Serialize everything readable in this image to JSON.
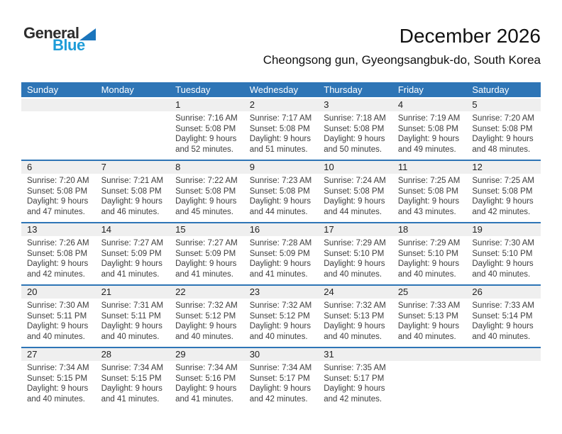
{
  "logo": {
    "line1": "General",
    "line2": "Blue"
  },
  "header": {
    "title": "December 2026",
    "subtitle": "Cheongsong gun, Gyeongsangbuk-do, South Korea"
  },
  "weekday_headers": [
    "Sunday",
    "Monday",
    "Tuesday",
    "Wednesday",
    "Thursday",
    "Friday",
    "Saturday"
  ],
  "cell_labels": {
    "sunrise": "Sunrise:",
    "sunset": "Sunset:",
    "daylight": "Daylight:"
  },
  "colors": {
    "header_bar_blue": "#2e75b6",
    "row_divider_blue": "#2e75b6",
    "day_stripe_gray": "#efefef",
    "logo_triangle_blue": "#1b75bc",
    "logo_blue_text": "#1e9cd8",
    "title_text": "#111111",
    "detail_text": "#3d3d3d"
  },
  "weeks": [
    [
      null,
      null,
      {
        "day": "1",
        "sunrise": "7:16 AM",
        "sunset": "5:08 PM",
        "daylight": "9 hours and 52 minutes."
      },
      {
        "day": "2",
        "sunrise": "7:17 AM",
        "sunset": "5:08 PM",
        "daylight": "9 hours and 51 minutes."
      },
      {
        "day": "3",
        "sunrise": "7:18 AM",
        "sunset": "5:08 PM",
        "daylight": "9 hours and 50 minutes."
      },
      {
        "day": "4",
        "sunrise": "7:19 AM",
        "sunset": "5:08 PM",
        "daylight": "9 hours and 49 minutes."
      },
      {
        "day": "5",
        "sunrise": "7:20 AM",
        "sunset": "5:08 PM",
        "daylight": "9 hours and 48 minutes."
      }
    ],
    [
      {
        "day": "6",
        "sunrise": "7:20 AM",
        "sunset": "5:08 PM",
        "daylight": "9 hours and 47 minutes."
      },
      {
        "day": "7",
        "sunrise": "7:21 AM",
        "sunset": "5:08 PM",
        "daylight": "9 hours and 46 minutes."
      },
      {
        "day": "8",
        "sunrise": "7:22 AM",
        "sunset": "5:08 PM",
        "daylight": "9 hours and 45 minutes."
      },
      {
        "day": "9",
        "sunrise": "7:23 AM",
        "sunset": "5:08 PM",
        "daylight": "9 hours and 44 minutes."
      },
      {
        "day": "10",
        "sunrise": "7:24 AM",
        "sunset": "5:08 PM",
        "daylight": "9 hours and 44 minutes."
      },
      {
        "day": "11",
        "sunrise": "7:25 AM",
        "sunset": "5:08 PM",
        "daylight": "9 hours and 43 minutes."
      },
      {
        "day": "12",
        "sunrise": "7:25 AM",
        "sunset": "5:08 PM",
        "daylight": "9 hours and 42 minutes."
      }
    ],
    [
      {
        "day": "13",
        "sunrise": "7:26 AM",
        "sunset": "5:08 PM",
        "daylight": "9 hours and 42 minutes."
      },
      {
        "day": "14",
        "sunrise": "7:27 AM",
        "sunset": "5:09 PM",
        "daylight": "9 hours and 41 minutes."
      },
      {
        "day": "15",
        "sunrise": "7:27 AM",
        "sunset": "5:09 PM",
        "daylight": "9 hours and 41 minutes."
      },
      {
        "day": "16",
        "sunrise": "7:28 AM",
        "sunset": "5:09 PM",
        "daylight": "9 hours and 41 minutes."
      },
      {
        "day": "17",
        "sunrise": "7:29 AM",
        "sunset": "5:10 PM",
        "daylight": "9 hours and 40 minutes."
      },
      {
        "day": "18",
        "sunrise": "7:29 AM",
        "sunset": "5:10 PM",
        "daylight": "9 hours and 40 minutes."
      },
      {
        "day": "19",
        "sunrise": "7:30 AM",
        "sunset": "5:10 PM",
        "daylight": "9 hours and 40 minutes."
      }
    ],
    [
      {
        "day": "20",
        "sunrise": "7:30 AM",
        "sunset": "5:11 PM",
        "daylight": "9 hours and 40 minutes."
      },
      {
        "day": "21",
        "sunrise": "7:31 AM",
        "sunset": "5:11 PM",
        "daylight": "9 hours and 40 minutes."
      },
      {
        "day": "22",
        "sunrise": "7:32 AM",
        "sunset": "5:12 PM",
        "daylight": "9 hours and 40 minutes."
      },
      {
        "day": "23",
        "sunrise": "7:32 AM",
        "sunset": "5:12 PM",
        "daylight": "9 hours and 40 minutes."
      },
      {
        "day": "24",
        "sunrise": "7:32 AM",
        "sunset": "5:13 PM",
        "daylight": "9 hours and 40 minutes."
      },
      {
        "day": "25",
        "sunrise": "7:33 AM",
        "sunset": "5:13 PM",
        "daylight": "9 hours and 40 minutes."
      },
      {
        "day": "26",
        "sunrise": "7:33 AM",
        "sunset": "5:14 PM",
        "daylight": "9 hours and 40 minutes."
      }
    ],
    [
      {
        "day": "27",
        "sunrise": "7:34 AM",
        "sunset": "5:15 PM",
        "daylight": "9 hours and 40 minutes."
      },
      {
        "day": "28",
        "sunrise": "7:34 AM",
        "sunset": "5:15 PM",
        "daylight": "9 hours and 41 minutes."
      },
      {
        "day": "29",
        "sunrise": "7:34 AM",
        "sunset": "5:16 PM",
        "daylight": "9 hours and 41 minutes."
      },
      {
        "day": "30",
        "sunrise": "7:34 AM",
        "sunset": "5:17 PM",
        "daylight": "9 hours and 42 minutes."
      },
      {
        "day": "31",
        "sunrise": "7:35 AM",
        "sunset": "5:17 PM",
        "daylight": "9 hours and 42 minutes."
      },
      null,
      null
    ]
  ]
}
